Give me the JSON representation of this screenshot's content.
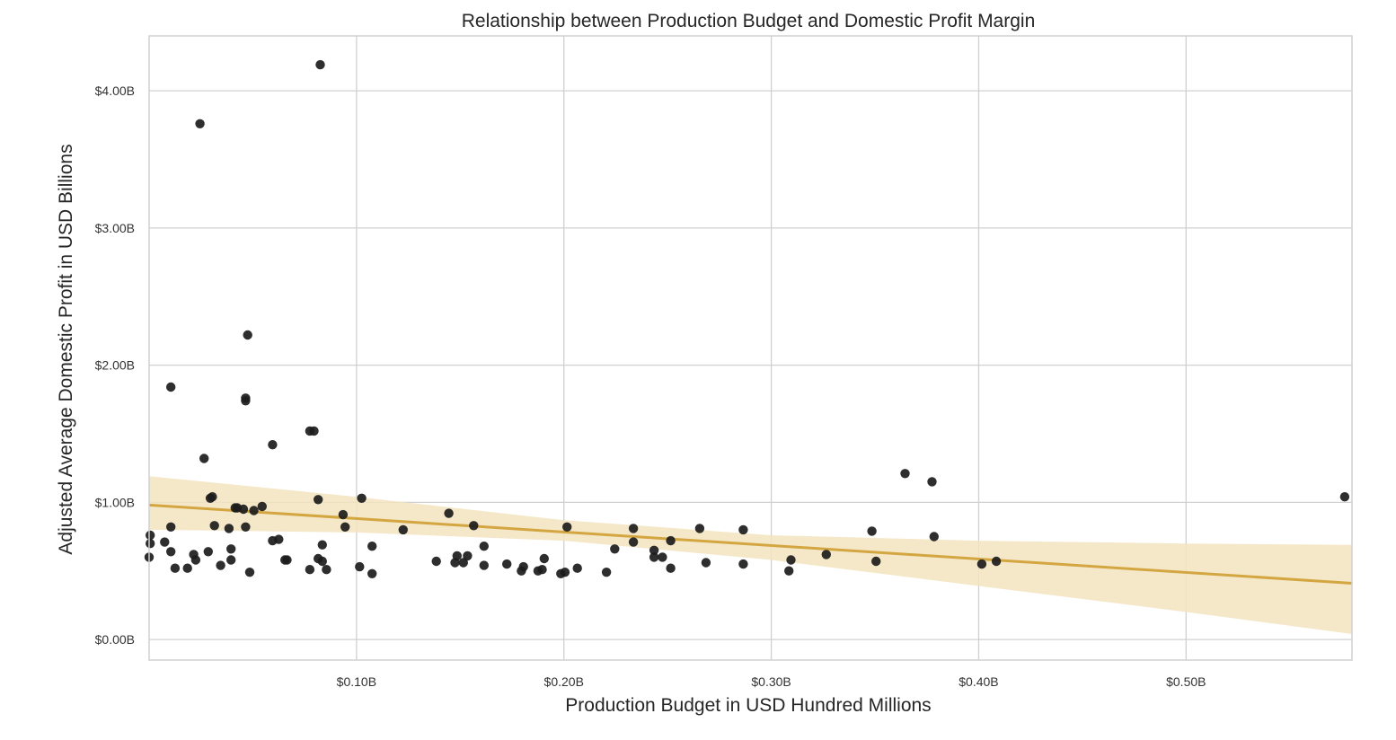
{
  "chart_data": {
    "type": "scatter",
    "title": "Relationship between Production Budget and Domestic Profit Margin",
    "xlabel": "Production Budget in USD Hundred Millions",
    "ylabel": "Adjusted Average Domestic Profit in USD Billions",
    "xlim": [
      0.0,
      0.58
    ],
    "ylim": [
      -0.15,
      4.4
    ],
    "xticks": [
      {
        "value": 0.1,
        "label": "$0.10B"
      },
      {
        "value": 0.2,
        "label": "$0.20B"
      },
      {
        "value": 0.3,
        "label": "$0.30B"
      },
      {
        "value": 0.4,
        "label": "$0.40B"
      },
      {
        "value": 0.5,
        "label": "$0.50B"
      }
    ],
    "yticks": [
      {
        "value": 0.0,
        "label": "$0.00B"
      },
      {
        "value": 1.0,
        "label": "$1.00B"
      },
      {
        "value": 2.0,
        "label": "$2.00B"
      },
      {
        "value": 3.0,
        "label": "$3.00B"
      },
      {
        "value": 4.0,
        "label": "$4.00B"
      }
    ],
    "grid": true,
    "legend": "none",
    "colors": {
      "points": "#1c1c1c",
      "regression_line": "#d4a641",
      "confidence_band": "#f3e4c0",
      "grid": "#d0d0d0",
      "background": "#ffffff"
    },
    "regression": {
      "line": [
        [
          0.0,
          0.98
        ],
        [
          0.58,
          0.41
        ]
      ],
      "ci_upper": [
        [
          0.0,
          1.19
        ],
        [
          0.1,
          1.04
        ],
        [
          0.2,
          0.87
        ],
        [
          0.3,
          0.76
        ],
        [
          0.4,
          0.72
        ],
        [
          0.5,
          0.7
        ],
        [
          0.58,
          0.69
        ]
      ],
      "ci_lower": [
        [
          0.0,
          0.8
        ],
        [
          0.1,
          0.78
        ],
        [
          0.2,
          0.72
        ],
        [
          0.3,
          0.58
        ],
        [
          0.4,
          0.39
        ],
        [
          0.5,
          0.2
        ],
        [
          0.58,
          0.04
        ]
      ]
    },
    "x": [
      0.0825,
      0.0245,
      0.0475,
      0.0105,
      0.0465,
      0.0465,
      0.0775,
      0.0795,
      0.0595,
      0.0265,
      0.0295,
      0.0305,
      0.0815,
      0.1025,
      0.0935,
      0.0945,
      0.0545,
      0.0455,
      0.0385,
      0.0415,
      0.0225,
      0.0395,
      0.1445,
      0.1565,
      0.2015,
      0.2335,
      0.2655,
      0.2865,
      0.0,
      0.0105,
      0.0625,
      0.0665,
      0.0835,
      0.0285,
      0.0215,
      0.0395,
      0.0005,
      0.0075,
      0.0185,
      0.0345,
      0.0485,
      0.0595,
      0.0655,
      0.0775,
      0.0815,
      0.0855,
      0.1015,
      0.1075,
      0.1075,
      0.1225,
      0.1385,
      0.1475,
      0.1515,
      0.1535,
      0.1615,
      0.1615,
      0.1725,
      0.1795,
      0.1805,
      0.1875,
      0.1895,
      0.1905,
      0.1985,
      0.2005,
      0.2065,
      0.2205,
      0.2245,
      0.2335,
      0.2435,
      0.2435,
      0.2475,
      0.2515,
      0.2515,
      0.2685,
      0.2865,
      0.3085,
      0.3095,
      0.3265,
      0.3485,
      0.3505,
      0.3645,
      0.3775,
      0.3785,
      0.4015,
      0.4085,
      0.5765,
      0.0005,
      0.0465,
      0.0835,
      0.1485,
      0.0105,
      0.0425,
      0.0315,
      0.0125,
      0.0505
    ],
    "y": [
      4.19,
      3.76,
      2.22,
      1.84,
      1.76,
      1.74,
      1.52,
      1.52,
      1.42,
      1.32,
      1.03,
      1.04,
      1.02,
      1.03,
      0.91,
      0.82,
      0.97,
      0.95,
      0.81,
      0.96,
      0.58,
      0.66,
      0.92,
      0.83,
      0.82,
      0.81,
      0.81,
      0.8,
      0.6,
      0.64,
      0.73,
      0.58,
      0.57,
      0.64,
      0.62,
      0.58,
      0.7,
      0.71,
      0.52,
      0.54,
      0.49,
      0.72,
      0.58,
      0.51,
      0.59,
      0.51,
      0.53,
      0.48,
      0.68,
      0.8,
      0.57,
      0.56,
      0.56,
      0.61,
      0.68,
      0.54,
      0.55,
      0.5,
      0.53,
      0.5,
      0.51,
      0.59,
      0.48,
      0.49,
      0.52,
      0.49,
      0.66,
      0.71,
      0.65,
      0.6,
      0.6,
      0.52,
      0.72,
      0.56,
      0.55,
      0.5,
      0.58,
      0.62,
      0.79,
      0.57,
      1.21,
      1.15,
      0.75,
      0.55,
      0.57,
      1.04,
      0.76,
      0.82,
      0.69,
      0.61,
      0.82,
      0.96,
      0.83,
      0.52,
      0.94
    ]
  }
}
